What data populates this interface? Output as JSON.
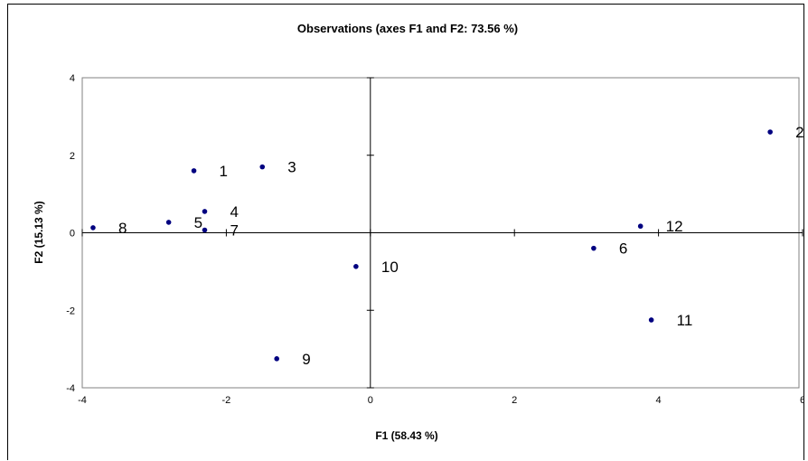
{
  "chart_data": {
    "type": "scatter",
    "title": "Observations (axes F1 and F2: 73.56 %)",
    "xlabel": "F1 (58.43 %)",
    "ylabel": "F2 (15.13 %)",
    "xlim": [
      -4,
      6
    ],
    "ylim": [
      -4,
      4
    ],
    "xticks": [
      "-4",
      "-2",
      "0",
      "2",
      "4",
      "6"
    ],
    "yticks": [
      "-4",
      "-2",
      "0",
      "2",
      "4"
    ],
    "grid": false,
    "legend": "none",
    "point_color": "#000080",
    "points": [
      {
        "label": "1",
        "x": -2.45,
        "y": 1.6
      },
      {
        "label": "2",
        "x": 5.55,
        "y": 2.6
      },
      {
        "label": "3",
        "x": -1.5,
        "y": 1.7
      },
      {
        "label": "4",
        "x": -2.3,
        "y": 0.55
      },
      {
        "label": "5",
        "x": -2.8,
        "y": 0.27
      },
      {
        "label": "6",
        "x": 3.1,
        "y": -0.4
      },
      {
        "label": "7",
        "x": -2.3,
        "y": 0.07
      },
      {
        "label": "8",
        "x": -3.85,
        "y": 0.13
      },
      {
        "label": "9",
        "x": -1.3,
        "y": -3.25
      },
      {
        "label": "10",
        "x": -0.2,
        "y": -0.87
      },
      {
        "label": "11",
        "x": 3.9,
        "y": -2.25
      },
      {
        "label": "12",
        "x": 3.75,
        "y": 0.17
      }
    ]
  }
}
